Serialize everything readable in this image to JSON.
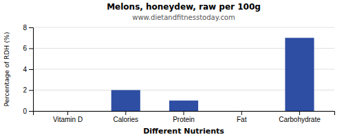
{
  "chart_data": {
    "type": "bar",
    "title": "Melons, honeydew, raw per 100g",
    "subtitle": "www.dietandfitnesstoday.com",
    "xlabel": "Different Nutrients",
    "ylabel": "Percentage of RDH (%)",
    "categories": [
      "Vitamin D",
      "Calories",
      "Protein",
      "Fat",
      "Carbohydrate"
    ],
    "values": [
      0,
      2,
      1,
      0,
      7
    ],
    "color": "#2e4ea3",
    "ylim": [
      0,
      8
    ],
    "yticks": [
      0,
      2,
      4,
      6,
      8
    ],
    "grid": true
  }
}
